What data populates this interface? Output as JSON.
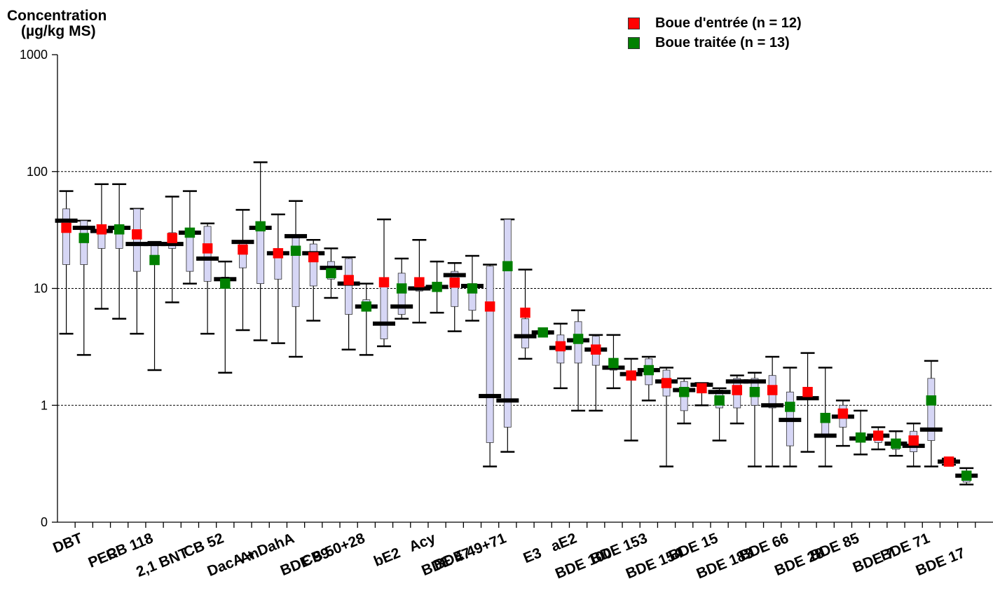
{
  "chart_data": {
    "type": "box",
    "ylabel_line1": "Concentration",
    "ylabel_line2": "(µg/kg MS)",
    "yscale": "log",
    "ylim": [
      0.1,
      1000
    ],
    "yticks": [
      {
        "value": 1000,
        "label": "1000"
      },
      {
        "value": 100,
        "label": "100"
      },
      {
        "value": 10,
        "label": "10"
      },
      {
        "value": 1,
        "label": "1"
      },
      {
        "value": 0.1,
        "label": "0"
      }
    ],
    "gridlines": [
      100,
      10,
      1
    ],
    "categories": [
      "DBT",
      "PER",
      "CB 118",
      "2,1 BNT",
      "CB 52",
      "An",
      "DacA + DahA",
      "BDE 99",
      "CB 50+28",
      "bE2",
      "Acy",
      "BDE 47",
      "BDE 49+71",
      "E3",
      "aE2",
      "BDE 100",
      "BDE 153",
      "BDE 154",
      "BDE 15",
      "BDE 183",
      "BDE 66",
      "BDE 28",
      "BDE 85",
      "BDE 7",
      "BDE 71",
      "BDE 17"
    ],
    "legend": [
      {
        "label": "Boue d'entrée (n = 12)",
        "color": "#ff0000"
      },
      {
        "label": "Boue traitée  (n = 13)",
        "color": "#008000"
      }
    ],
    "series": [
      {
        "name": "Boue d'entrée (n = 12)",
        "color": "#ff0000",
        "boxes": [
          {
            "category": "DBT",
            "min": 4.1,
            "q1": 16,
            "median": 38,
            "q3": 48,
            "max": 68,
            "mean": 33
          },
          {
            "category": "PER",
            "min": 6.7,
            "q1": 22,
            "median": 31,
            "q3": 33,
            "max": 78,
            "mean": 32
          },
          {
            "category": "CB 118",
            "min": 4.1,
            "q1": 14,
            "median": 24,
            "q3": 48,
            "max": 48,
            "mean": 29
          },
          {
            "category": "2,1 BNT",
            "min": 7.6,
            "q1": 22,
            "median": 24,
            "q3": 30,
            "max": 61,
            "mean": 27
          },
          {
            "category": "CB 52",
            "min": 4.1,
            "q1": 11.5,
            "median": 18,
            "q3": 34,
            "max": 36,
            "mean": 22
          },
          {
            "category": "An",
            "min": 4.4,
            "q1": 15,
            "median": 25,
            "q3": 25,
            "max": 47,
            "mean": 21.5
          },
          {
            "category": "DacA + DahA",
            "min": 3.4,
            "q1": 12,
            "median": 20,
            "q3": 20,
            "max": 43,
            "mean": 20
          },
          {
            "category": "BDE 99",
            "min": 5.3,
            "q1": 10.5,
            "median": 20,
            "q3": 24,
            "max": 26,
            "mean": 18.5
          },
          {
            "category": "CB 50+28",
            "min": 3.0,
            "q1": 6,
            "median": 11,
            "q3": 18,
            "max": 18.5,
            "mean": 11.8
          },
          {
            "category": "bE2",
            "min": 3.2,
            "q1": 3.7,
            "median": 5,
            "q3": 11,
            "max": 39,
            "mean": 11.3
          },
          {
            "category": "Acy",
            "min": 5.1,
            "q1": 9.5,
            "median": 10,
            "q3": 10,
            "max": 26,
            "mean": 11.3
          },
          {
            "category": "BDE 47",
            "min": 4.3,
            "q1": 7,
            "median": 13,
            "q3": 14,
            "max": 16.5,
            "mean": 11.2
          },
          {
            "category": "BDE 49+71",
            "min": 0.3,
            "q1": 0.48,
            "median": 1.2,
            "q3": 15.5,
            "max": 16,
            "mean": 7
          },
          {
            "category": "E3",
            "min": 2.5,
            "q1": 3.1,
            "median": 3.9,
            "q3": 5.5,
            "max": 14.5,
            "mean": 6.2
          },
          {
            "category": "aE2",
            "min": 1.4,
            "q1": 2.3,
            "median": 3.1,
            "q3": 4.0,
            "max": 5.0,
            "mean": 3.2
          },
          {
            "category": "BDE 100",
            "min": 0.9,
            "q1": 2.2,
            "median": 3.0,
            "q3": 3.9,
            "max": 4.0,
            "mean": 3.0
          },
          {
            "category": "BDE 153",
            "min": 0.5,
            "q1": 1.8,
            "median": 1.85,
            "q3": 1.85,
            "max": 2.5,
            "mean": 1.8
          },
          {
            "category": "BDE 154",
            "min": 0.3,
            "q1": 1.2,
            "median": 1.6,
            "q3": 2.0,
            "max": 2.1,
            "mean": 1.55
          },
          {
            "category": "BDE 15",
            "min": 1.0,
            "q1": 1.35,
            "median": 1.5,
            "q3": 1.5,
            "max": 1.55,
            "mean": 1.4
          },
          {
            "category": "BDE 183",
            "min": 0.7,
            "q1": 0.95,
            "median": 1.6,
            "q3": 1.7,
            "max": 1.8,
            "mean": 1.35
          },
          {
            "category": "BDE 66",
            "min": 0.3,
            "q1": 0.95,
            "median": 1.0,
            "q3": 1.8,
            "max": 2.6,
            "mean": 1.35
          },
          {
            "category": "BDE 28",
            "min": 0.4,
            "q1": 1.15,
            "median": 1.15,
            "q3": 1.2,
            "max": 2.8,
            "mean": 1.3
          },
          {
            "category": "BDE 85",
            "min": 0.45,
            "q1": 0.65,
            "median": 0.8,
            "q3": 1.0,
            "max": 1.1,
            "mean": 0.85
          },
          {
            "category": "BDE 7",
            "min": 0.42,
            "q1": 0.48,
            "median": 0.55,
            "q3": 0.6,
            "max": 0.65,
            "mean": 0.55
          },
          {
            "category": "BDE 71",
            "min": 0.3,
            "q1": 0.4,
            "median": 0.45,
            "q3": 0.6,
            "max": 0.7,
            "mean": 0.5
          },
          {
            "category": "BDE 17",
            "min": 0.31,
            "q1": 0.32,
            "median": 0.33,
            "q3": 0.34,
            "max": 0.35,
            "mean": 0.33
          }
        ]
      },
      {
        "name": "Boue traitée  (n = 13)",
        "color": "#008000",
        "boxes": [
          {
            "category": "DBT",
            "min": 2.7,
            "q1": 16,
            "median": 33,
            "q3": 38,
            "max": 38,
            "mean": 27
          },
          {
            "category": "PER",
            "min": 5.5,
            "q1": 22,
            "median": 33,
            "q3": 34,
            "max": 78,
            "mean": 32
          },
          {
            "category": "CB 118",
            "min": 2.0,
            "q1": 18,
            "median": 24,
            "q3": 24,
            "max": 25,
            "mean": 17.5
          },
          {
            "category": "2,1 BNT",
            "min": 11,
            "q1": 14,
            "median": 30,
            "q3": 31,
            "max": 68,
            "mean": 30
          },
          {
            "category": "CB 52",
            "min": 1.9,
            "q1": 10,
            "median": 12,
            "q3": 12.5,
            "max": 17,
            "mean": 11
          },
          {
            "category": "An",
            "min": 3.6,
            "q1": 11,
            "median": 33,
            "q3": 34,
            "max": 120,
            "mean": 34
          },
          {
            "category": "DacA + DahA",
            "min": 2.6,
            "q1": 7,
            "median": 28,
            "q3": 28,
            "max": 56,
            "mean": 21
          },
          {
            "category": "BDE 99",
            "min": 8.3,
            "q1": 12,
            "median": 15,
            "q3": 17,
            "max": 22,
            "mean": 13.5
          },
          {
            "category": "CB 50+28",
            "min": 2.7,
            "q1": 6.8,
            "median": 7,
            "q3": 8,
            "max": 11,
            "mean": 7
          },
          {
            "category": "bE2",
            "min": 5.5,
            "q1": 6,
            "median": 7,
            "q3": 13.5,
            "max": 18,
            "mean": 10
          },
          {
            "category": "Acy",
            "min": 6.2,
            "q1": 9.8,
            "median": 10.3,
            "q3": 10.8,
            "max": 17,
            "mean": 10.3
          },
          {
            "category": "BDE 47",
            "min": 5.3,
            "q1": 6.5,
            "median": 10.5,
            "q3": 11,
            "max": 19,
            "mean": 10
          },
          {
            "category": "BDE 49+71",
            "min": 0.4,
            "q1": 0.65,
            "median": 1.1,
            "q3": 39,
            "max": 39,
            "mean": 15.5
          },
          {
            "category": "E3",
            "min": 4.1,
            "q1": 4.1,
            "median": 4.2,
            "q3": 4.3,
            "max": 4.3,
            "mean": 4.2
          },
          {
            "category": "aE2",
            "min": 0.9,
            "q1": 2.3,
            "median": 3.6,
            "q3": 5.2,
            "max": 6.5,
            "mean": 3.7
          },
          {
            "category": "BDE 100",
            "min": 1.4,
            "q1": 2.0,
            "median": 2.1,
            "q3": 2.5,
            "max": 4.0,
            "mean": 2.3
          },
          {
            "category": "BDE 153",
            "min": 1.1,
            "q1": 1.5,
            "median": 2.0,
            "q3": 2.5,
            "max": 2.6,
            "mean": 2.0
          },
          {
            "category": "BDE 154",
            "min": 0.7,
            "q1": 0.9,
            "median": 1.35,
            "q3": 1.6,
            "max": 1.7,
            "mean": 1.3
          },
          {
            "category": "BDE 15",
            "min": 0.5,
            "q1": 0.95,
            "median": 1.3,
            "q3": 1.35,
            "max": 1.4,
            "mean": 1.1
          },
          {
            "category": "BDE 183",
            "min": 0.3,
            "q1": 1.0,
            "median": 1.6,
            "q3": 1.7,
            "max": 1.9,
            "mean": 1.3
          },
          {
            "category": "BDE 66",
            "min": 0.3,
            "q1": 0.45,
            "median": 0.75,
            "q3": 1.3,
            "max": 2.1,
            "mean": 0.97
          },
          {
            "category": "BDE 28",
            "min": 0.3,
            "q1": 0.55,
            "median": 0.55,
            "q3": 0.8,
            "max": 2.1,
            "mean": 0.78
          },
          {
            "category": "BDE 85",
            "min": 0.38,
            "q1": 0.5,
            "median": 0.52,
            "q3": 0.55,
            "max": 0.9,
            "mean": 0.53
          },
          {
            "category": "BDE 7",
            "min": 0.37,
            "q1": 0.42,
            "median": 0.47,
            "q3": 0.5,
            "max": 0.6,
            "mean": 0.47
          },
          {
            "category": "BDE 71",
            "min": 0.3,
            "q1": 0.5,
            "median": 0.62,
            "q3": 1.7,
            "max": 2.4,
            "mean": 1.1
          },
          {
            "category": "BDE 17",
            "min": 0.21,
            "q1": 0.22,
            "median": 0.25,
            "q3": 0.27,
            "max": 0.29,
            "mean": 0.25
          }
        ]
      }
    ]
  }
}
